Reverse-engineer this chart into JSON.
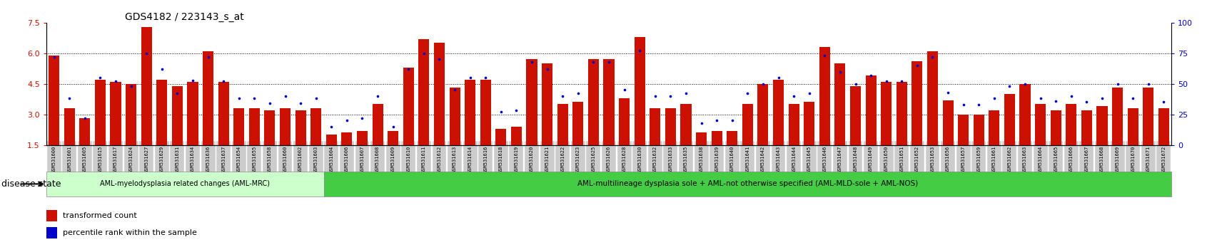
{
  "title": "GDS4182 / 223143_s_at",
  "ylim_left": [
    1.5,
    7.5
  ],
  "ylim_right": [
    0,
    100
  ],
  "yticks_left": [
    1.5,
    3.0,
    4.5,
    6.0,
    7.5
  ],
  "yticks_right": [
    0,
    25,
    50,
    75,
    100
  ],
  "bar_color": "#cc1100",
  "dot_color": "#0000cc",
  "tick_color_left": "#cc1100",
  "tick_color_right": "#0000cc",
  "categories": [
    "GSM531600",
    "GSM531601",
    "GSM531605",
    "GSM531615",
    "GSM531617",
    "GSM531624",
    "GSM531627",
    "GSM531629",
    "GSM531631",
    "GSM531634",
    "GSM531636",
    "GSM531637",
    "GSM531654",
    "GSM531655",
    "GSM531658",
    "GSM531660",
    "GSM531602",
    "GSM531603",
    "GSM531604",
    "GSM531606",
    "GSM531607",
    "GSM531608",
    "GSM531609",
    "GSM531610",
    "GSM531611",
    "GSM531612",
    "GSM531613",
    "GSM531614",
    "GSM531616",
    "GSM531618",
    "GSM531619",
    "GSM531620",
    "GSM531621",
    "GSM531622",
    "GSM531623",
    "GSM531625",
    "GSM531626",
    "GSM531628",
    "GSM531630",
    "GSM531632",
    "GSM531633",
    "GSM531635",
    "GSM531638",
    "GSM531639",
    "GSM531640",
    "GSM531641",
    "GSM531642",
    "GSM531643",
    "GSM531644",
    "GSM531645",
    "GSM531646",
    "GSM531647",
    "GSM531648",
    "GSM531649",
    "GSM531650",
    "GSM531651",
    "GSM531652",
    "GSM531653",
    "GSM531656",
    "GSM531657",
    "GSM531659",
    "GSM531661",
    "GSM531662",
    "GSM531663",
    "GSM531664",
    "GSM531665",
    "GSM531666",
    "GSM531667",
    "GSM531668",
    "GSM531669",
    "GSM531670",
    "GSM531671",
    "GSM531672"
  ],
  "bar_values": [
    5.9,
    3.3,
    2.8,
    4.7,
    4.6,
    4.5,
    7.3,
    4.7,
    4.4,
    4.6,
    6.1,
    4.6,
    3.3,
    3.3,
    3.2,
    3.3,
    3.2,
    3.3,
    2.0,
    2.1,
    2.2,
    3.5,
    2.2,
    5.3,
    6.7,
    6.5,
    4.3,
    4.7,
    4.7,
    2.3,
    2.4,
    5.7,
    5.5,
    3.5,
    3.6,
    5.7,
    5.7,
    3.8,
    6.8,
    3.3,
    3.3,
    3.5,
    2.1,
    2.2,
    2.2,
    3.5,
    4.5,
    4.7,
    3.5,
    3.6,
    6.3,
    5.5,
    4.4,
    4.9,
    4.6,
    4.6,
    5.6,
    6.1,
    3.7,
    3.0,
    3.0,
    3.2,
    4.0,
    4.5,
    3.5,
    3.2,
    3.5,
    3.2,
    3.4,
    4.3,
    3.3,
    4.3,
    3.3
  ],
  "dot_values": [
    72,
    38,
    22,
    55,
    52,
    48,
    75,
    62,
    42,
    53,
    72,
    52,
    38,
    38,
    34,
    40,
    34,
    38,
    15,
    20,
    22,
    40,
    15,
    62,
    75,
    70,
    45,
    55,
    55,
    27,
    28,
    68,
    62,
    40,
    42,
    68,
    68,
    45,
    77,
    40,
    40,
    42,
    18,
    20,
    20,
    42,
    50,
    55,
    40,
    42,
    73,
    60,
    50,
    57,
    52,
    52,
    65,
    72,
    43,
    33,
    33,
    38,
    48,
    50,
    38,
    36,
    40,
    35,
    38,
    50,
    38,
    50,
    35
  ],
  "group1_count": 18,
  "group1_label": "AML-myelodysplasia related changes (AML-MRC)",
  "group2_label": "AML-multilineage dysplasia sole + AML-not otherwise specified (AML-MLD-sole + AML-NOS)",
  "group1_color": "#ccffcc",
  "group2_color": "#44cc44",
  "disease_state_label": "disease state",
  "legend_bar_label": "transformed count",
  "legend_dot_label": "percentile rank within the sample",
  "xtick_bg_color": "#cccccc"
}
